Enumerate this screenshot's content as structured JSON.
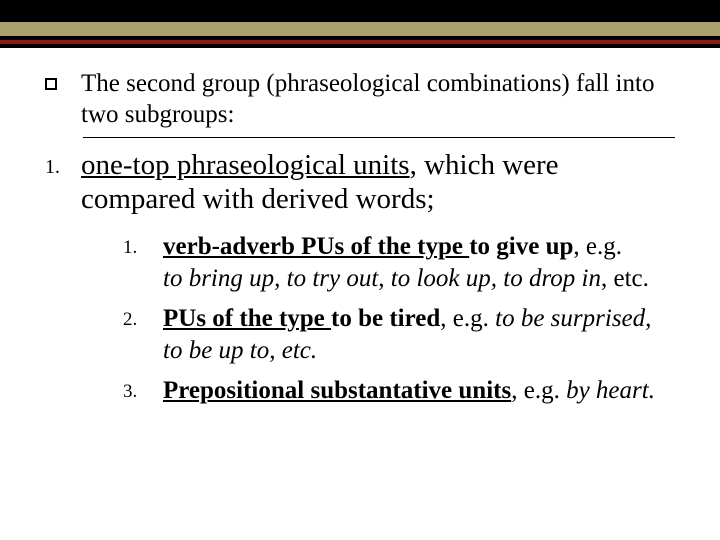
{
  "colors": {
    "background": "#ffffff",
    "band_black": "#000000",
    "band_olive": "#a9a16b",
    "band_maroon": "#8b1a1a",
    "text": "#000000"
  },
  "typography": {
    "body_font": "Times New Roman",
    "intro_fontsize": 25,
    "main_fontsize": 29,
    "inner_fontsize": 25,
    "marker_fontsize": 19
  },
  "intro": "The second group (phraseological combinations) fall into two subgroups:",
  "item1": {
    "marker": "1.",
    "lead_ul": "one-top phraseological units",
    "rest": ", which were compared with derived words;"
  },
  "sub": {
    "s1": {
      "marker": "1.",
      "lead_bu": "verb-adverb PUs of the type ",
      "after_lead_b": "to give up",
      "after_lead_plain": ", e.g. ",
      "line2_i": "to bring up, to try out, to look up, to drop in",
      "line2_plain": ", etc."
    },
    "s2": {
      "marker": "2.",
      "lead_bu": "PUs of the type ",
      "after_lead_b": "to be tired",
      "after_lead_plain": ", e.g. ",
      "tail_i": "to be surprised, to be up to, etc."
    },
    "s3": {
      "marker": "3.",
      "lead_bu": "Prepositional substantative units",
      "after_lead_plain": ", e.g. ",
      "tail_i": "by heart."
    }
  }
}
